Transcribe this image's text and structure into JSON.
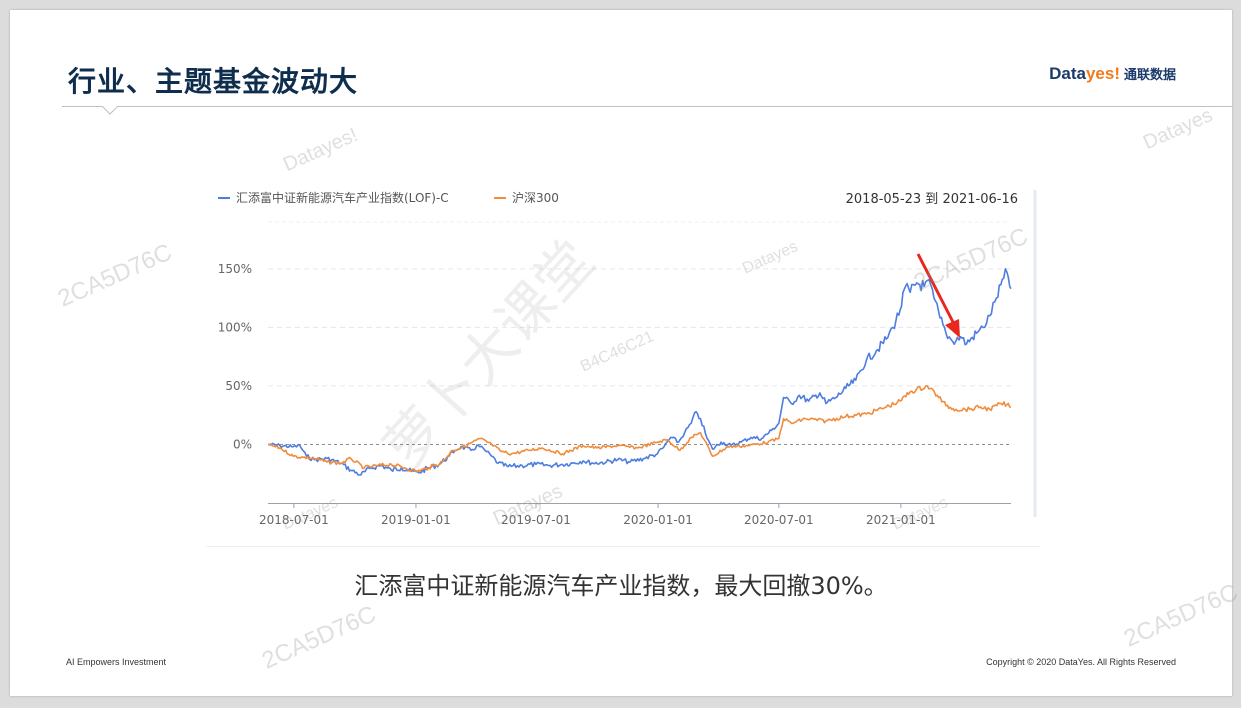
{
  "slide": {
    "title": "行业、主题基金波动大",
    "logo_brand_main": "Data",
    "logo_brand_accent": "yes!",
    "logo_cn": "通联数据",
    "caption": "汇添富中证新能源汽车产业指数，最大回撤30%。",
    "footer_left": "AI Empowers Investment",
    "footer_right": "Copyright © 2020 DataYes. All Rights Reserved"
  },
  "watermarks": [
    "Datayes!",
    "Datayes",
    "Datayes",
    "Datayes",
    "Datayes",
    "Datayes",
    "2CA5D76C",
    "2CA5D76C",
    "2CA5D76C",
    "2CA5D76C",
    "B4C46C21",
    "萝卜大课堂"
  ],
  "colors": {
    "series_blue": "#4e7de0",
    "series_orange": "#f08c3c",
    "arrow": "#e8281e",
    "title": "#0f2e4e"
  },
  "chart_data": {
    "type": "line",
    "date_range_label": "2018-05-23 到 2021-06-16",
    "x_start": "2018-05-23",
    "x_end": "2021-06-16",
    "ylim": [
      -50,
      190
    ],
    "yticks": [
      0,
      50,
      100,
      150
    ],
    "ytick_labels": [
      "0%",
      "50%",
      "100%",
      "150%"
    ],
    "xtick_dates": [
      "2018-07-01",
      "2019-01-01",
      "2019-07-01",
      "2020-01-01",
      "2020-07-01",
      "2021-01-01"
    ],
    "xtick_labels": [
      "2018-07-01",
      "2019-01-01",
      "2019-07-01",
      "2020-01-01",
      "2020-07-01",
      "2021-01-01"
    ],
    "legend_position": "top-left",
    "annotation": "arrow pointing to drawdown near 2021-03",
    "series": [
      {
        "name": "汇添富中证新能源汽车产业指数(LOF)-C",
        "color": "#4e7de0",
        "points": [
          [
            "2018-05-23",
            0
          ],
          [
            "2018-06-10",
            -1
          ],
          [
            "2018-06-30",
            -2
          ],
          [
            "2018-07-10",
            -1
          ],
          [
            "2018-07-20",
            -10
          ],
          [
            "2018-08-01",
            -13
          ],
          [
            "2018-08-20",
            -12
          ],
          [
            "2018-09-10",
            -16
          ],
          [
            "2018-09-25",
            -22
          ],
          [
            "2018-10-10",
            -26
          ],
          [
            "2018-10-25",
            -20
          ],
          [
            "2018-11-10",
            -18
          ],
          [
            "2018-11-25",
            -22
          ],
          [
            "2018-12-10",
            -20
          ],
          [
            "2018-12-25",
            -23
          ],
          [
            "2019-01-05",
            -24
          ],
          [
            "2019-01-20",
            -20
          ],
          [
            "2019-02-05",
            -17
          ],
          [
            "2019-02-20",
            -10
          ],
          [
            "2019-03-01",
            -5
          ],
          [
            "2019-03-10",
            -2
          ],
          [
            "2019-03-25",
            -5
          ],
          [
            "2019-04-05",
            -1
          ],
          [
            "2019-04-15",
            -5
          ],
          [
            "2019-04-25",
            -10
          ],
          [
            "2019-05-05",
            -16
          ],
          [
            "2019-05-20",
            -19
          ],
          [
            "2019-06-10",
            -18
          ],
          [
            "2019-07-01",
            -17
          ],
          [
            "2019-07-20",
            -18
          ],
          [
            "2019-08-10",
            -17
          ],
          [
            "2019-08-25",
            -16
          ],
          [
            "2019-09-10",
            -14
          ],
          [
            "2019-09-25",
            -16
          ],
          [
            "2019-10-15",
            -15
          ],
          [
            "2019-11-01",
            -13
          ],
          [
            "2019-11-20",
            -15
          ],
          [
            "2019-12-10",
            -12
          ],
          [
            "2019-12-31",
            -8
          ],
          [
            "2020-01-10",
            -2
          ],
          [
            "2020-01-20",
            6
          ],
          [
            "2020-02-01",
            2
          ],
          [
            "2020-02-10",
            10
          ],
          [
            "2020-02-20",
            18
          ],
          [
            "2020-02-25",
            27
          ],
          [
            "2020-03-05",
            22
          ],
          [
            "2020-03-15",
            5
          ],
          [
            "2020-03-23",
            -4
          ],
          [
            "2020-04-05",
            2
          ],
          [
            "2020-04-20",
            -1
          ],
          [
            "2020-05-05",
            2
          ],
          [
            "2020-05-20",
            6
          ],
          [
            "2020-06-05",
            5
          ],
          [
            "2020-06-20",
            12
          ],
          [
            "2020-07-01",
            18
          ],
          [
            "2020-07-08",
            40
          ],
          [
            "2020-07-20",
            35
          ],
          [
            "2020-08-01",
            42
          ],
          [
            "2020-08-15",
            37
          ],
          [
            "2020-09-01",
            44
          ],
          [
            "2020-09-10",
            35
          ],
          [
            "2020-09-25",
            40
          ],
          [
            "2020-10-10",
            48
          ],
          [
            "2020-10-25",
            55
          ],
          [
            "2020-11-10",
            72
          ],
          [
            "2020-11-25",
            80
          ],
          [
            "2020-12-10",
            90
          ],
          [
            "2020-12-20",
            100
          ],
          [
            "2020-12-31",
            115
          ],
          [
            "2021-01-08",
            135
          ],
          [
            "2021-01-15",
            130
          ],
          [
            "2021-01-25",
            138
          ],
          [
            "2021-02-05",
            135
          ],
          [
            "2021-02-10",
            140
          ],
          [
            "2021-02-20",
            125
          ],
          [
            "2021-03-01",
            108
          ],
          [
            "2021-03-10",
            95
          ],
          [
            "2021-03-20",
            88
          ],
          [
            "2021-04-01",
            92
          ],
          [
            "2021-04-10",
            86
          ],
          [
            "2021-04-25",
            95
          ],
          [
            "2021-05-05",
            100
          ],
          [
            "2021-05-15",
            110
          ],
          [
            "2021-05-25",
            125
          ],
          [
            "2021-06-05",
            142
          ],
          [
            "2021-06-10",
            147
          ],
          [
            "2021-06-16",
            133
          ]
        ]
      },
      {
        "name": "沪深300",
        "color": "#f08c3c",
        "points": [
          [
            "2018-05-23",
            0
          ],
          [
            "2018-06-10",
            -3
          ],
          [
            "2018-06-30",
            -10
          ],
          [
            "2018-07-15",
            -11
          ],
          [
            "2018-08-01",
            -12
          ],
          [
            "2018-08-20",
            -15
          ],
          [
            "2018-09-10",
            -16
          ],
          [
            "2018-09-25",
            -12
          ],
          [
            "2018-10-15",
            -20
          ],
          [
            "2018-11-05",
            -18
          ],
          [
            "2018-11-25",
            -17
          ],
          [
            "2018-12-15",
            -20
          ],
          [
            "2019-01-03",
            -23
          ],
          [
            "2019-01-20",
            -20
          ],
          [
            "2019-02-10",
            -15
          ],
          [
            "2019-02-25",
            -5
          ],
          [
            "2019-03-10",
            -3
          ],
          [
            "2019-04-08",
            5
          ],
          [
            "2019-04-25",
            0
          ],
          [
            "2019-05-10",
            -6
          ],
          [
            "2019-05-25",
            -8
          ],
          [
            "2019-06-20",
            -5
          ],
          [
            "2019-07-10",
            -3
          ],
          [
            "2019-08-10",
            -8
          ],
          [
            "2019-09-10",
            -1
          ],
          [
            "2019-10-01",
            -3
          ],
          [
            "2019-11-01",
            -1
          ],
          [
            "2019-12-01",
            -3
          ],
          [
            "2019-12-31",
            2
          ],
          [
            "2020-01-15",
            4
          ],
          [
            "2020-02-03",
            -5
          ],
          [
            "2020-02-20",
            6
          ],
          [
            "2020-03-05",
            10
          ],
          [
            "2020-03-23",
            -10
          ],
          [
            "2020-04-15",
            -2
          ],
          [
            "2020-05-15",
            -1
          ],
          [
            "2020-06-15",
            2
          ],
          [
            "2020-07-01",
            5
          ],
          [
            "2020-07-08",
            22
          ],
          [
            "2020-07-20",
            18
          ],
          [
            "2020-08-10",
            22
          ],
          [
            "2020-09-10",
            20
          ],
          [
            "2020-10-10",
            24
          ],
          [
            "2020-11-10",
            26
          ],
          [
            "2020-12-10",
            32
          ],
          [
            "2020-12-31",
            37
          ],
          [
            "2021-01-15",
            45
          ],
          [
            "2021-02-10",
            50
          ],
          [
            "2021-02-25",
            42
          ],
          [
            "2021-03-10",
            33
          ],
          [
            "2021-03-25",
            30
          ],
          [
            "2021-04-15",
            30
          ],
          [
            "2021-05-01",
            32
          ],
          [
            "2021-05-15",
            30
          ],
          [
            "2021-06-01",
            35
          ],
          [
            "2021-06-10",
            34
          ],
          [
            "2021-06-16",
            32
          ]
        ]
      }
    ]
  }
}
